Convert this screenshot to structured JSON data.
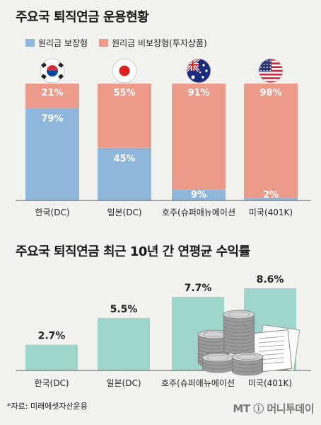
{
  "chart_data": [
    {
      "type": "bar",
      "stacked": true,
      "title": "주요국 퇴직연금 운용현황",
      "categories": [
        "한국(DC)",
        "일본(DC)",
        "호주(슈퍼애뉴에이션",
        "미국(401K)"
      ],
      "series": [
        {
          "name": "원리금 보장형",
          "values": [
            79,
            45,
            9,
            2
          ],
          "labels": [
            "79%",
            "45%",
            "9%",
            "2%"
          ],
          "color": "#8fb7dc"
        },
        {
          "name": "원리금 비보장형(투자상품)",
          "values": [
            21,
            55,
            91,
            98
          ],
          "labels": [
            "21%",
            "55%",
            "91%",
            "98%"
          ],
          "color": "#ec9a89"
        }
      ],
      "ylim": [
        0,
        100
      ],
      "legend": "top-left",
      "grid": false
    },
    {
      "type": "bar",
      "title": "주요국 퇴직연금 최근 10년 간 연평균 수익률",
      "categories": [
        "한국(DC)",
        "일본(DC)",
        "호주(슈퍼애뉴에이션",
        "미국(401K)"
      ],
      "values": [
        2.7,
        5.5,
        7.7,
        8.6
      ],
      "value_labels": [
        "2.7%",
        "5.5%",
        "7.7%",
        "8.6%"
      ],
      "color": "#9fd6cb",
      "ylim": [
        0,
        9.5
      ],
      "grid": false
    }
  ],
  "flags": [
    "korea-flag-icon",
    "japan-flag-icon",
    "australia-flag-icon",
    "usa-flag-icon"
  ],
  "source": "*자료: 미래에셋자산운용",
  "logo": "MT ⓘ 머니투데이"
}
